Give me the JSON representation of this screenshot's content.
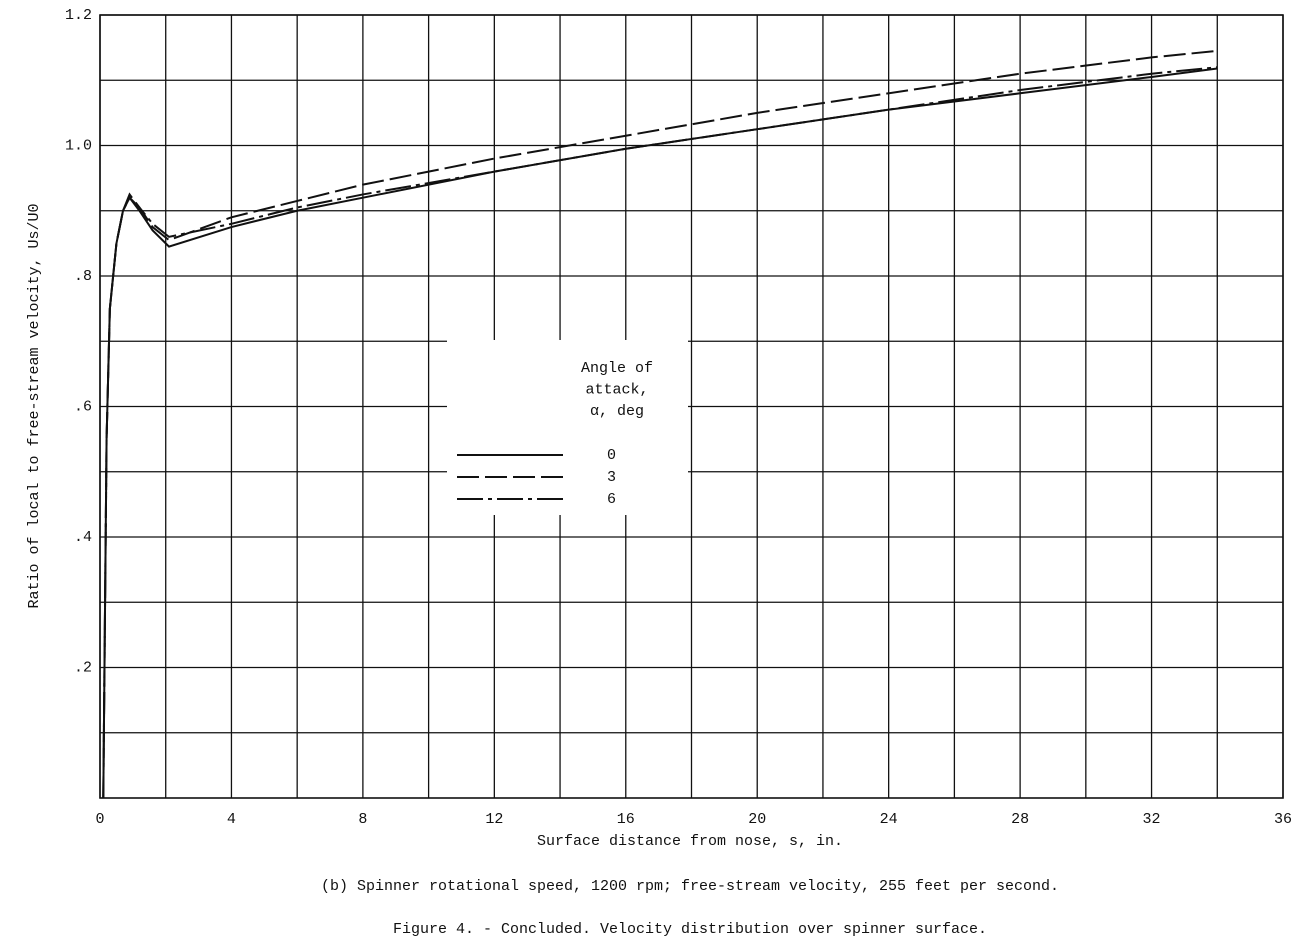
{
  "chart_data": {
    "type": "line",
    "xlabel": "Surface distance from nose, s, in.",
    "ylabel": "Ratio of local to free-stream velocity, Us/U0",
    "captions": [
      "(b) Spinner rotational speed, 1200 rpm; free-stream velocity, 255 feet per second.",
      "Figure 4. - Concluded.  Velocity distribution over spinner surface."
    ],
    "xlim": [
      0,
      36
    ],
    "ylim": [
      0,
      1.2
    ],
    "xticks": [
      0,
      4,
      8,
      12,
      16,
      20,
      24,
      28,
      32,
      36
    ],
    "yticks": [
      {
        "value": 0.2,
        "label": ".2"
      },
      {
        "value": 0.4,
        "label": ".4"
      },
      {
        "value": 0.6,
        "label": ".6"
      },
      {
        "value": 0.8,
        "label": ".8"
      },
      {
        "value": 1.0,
        "label": "1.0"
      },
      {
        "value": 1.2,
        "label": "1.2"
      }
    ],
    "grid": true,
    "legend_title": [
      "Angle of",
      "attack,",
      "α, deg"
    ],
    "x": [
      0.1,
      0.2,
      0.3,
      0.5,
      0.7,
      0.9,
      1.2,
      1.6,
      2.1,
      4,
      6,
      8,
      12,
      16,
      20,
      24,
      28,
      32,
      34
    ],
    "series": [
      {
        "name": "0",
        "color": "#111111",
        "dash": "solid",
        "values": [
          0,
          0.55,
          0.75,
          0.85,
          0.9,
          0.92,
          0.9,
          0.87,
          0.845,
          0.875,
          0.9,
          0.92,
          0.96,
          0.995,
          1.025,
          1.055,
          1.08,
          1.105,
          1.118
        ]
      },
      {
        "name": "3",
        "color": "#111111",
        "dash": "dashed",
        "values": [
          0,
          0.55,
          0.75,
          0.85,
          0.9,
          0.925,
          0.905,
          0.875,
          0.855,
          0.89,
          0.915,
          0.94,
          0.98,
          1.015,
          1.05,
          1.08,
          1.11,
          1.135,
          1.145
        ]
      },
      {
        "name": "6",
        "color": "#111111",
        "dash": "dashdot",
        "values": [
          0,
          0.55,
          0.75,
          0.85,
          0.9,
          0.92,
          0.905,
          0.88,
          0.86,
          0.88,
          0.905,
          0.925,
          0.96,
          0.995,
          1.025,
          1.055,
          1.085,
          1.11,
          1.12
        ]
      }
    ]
  }
}
